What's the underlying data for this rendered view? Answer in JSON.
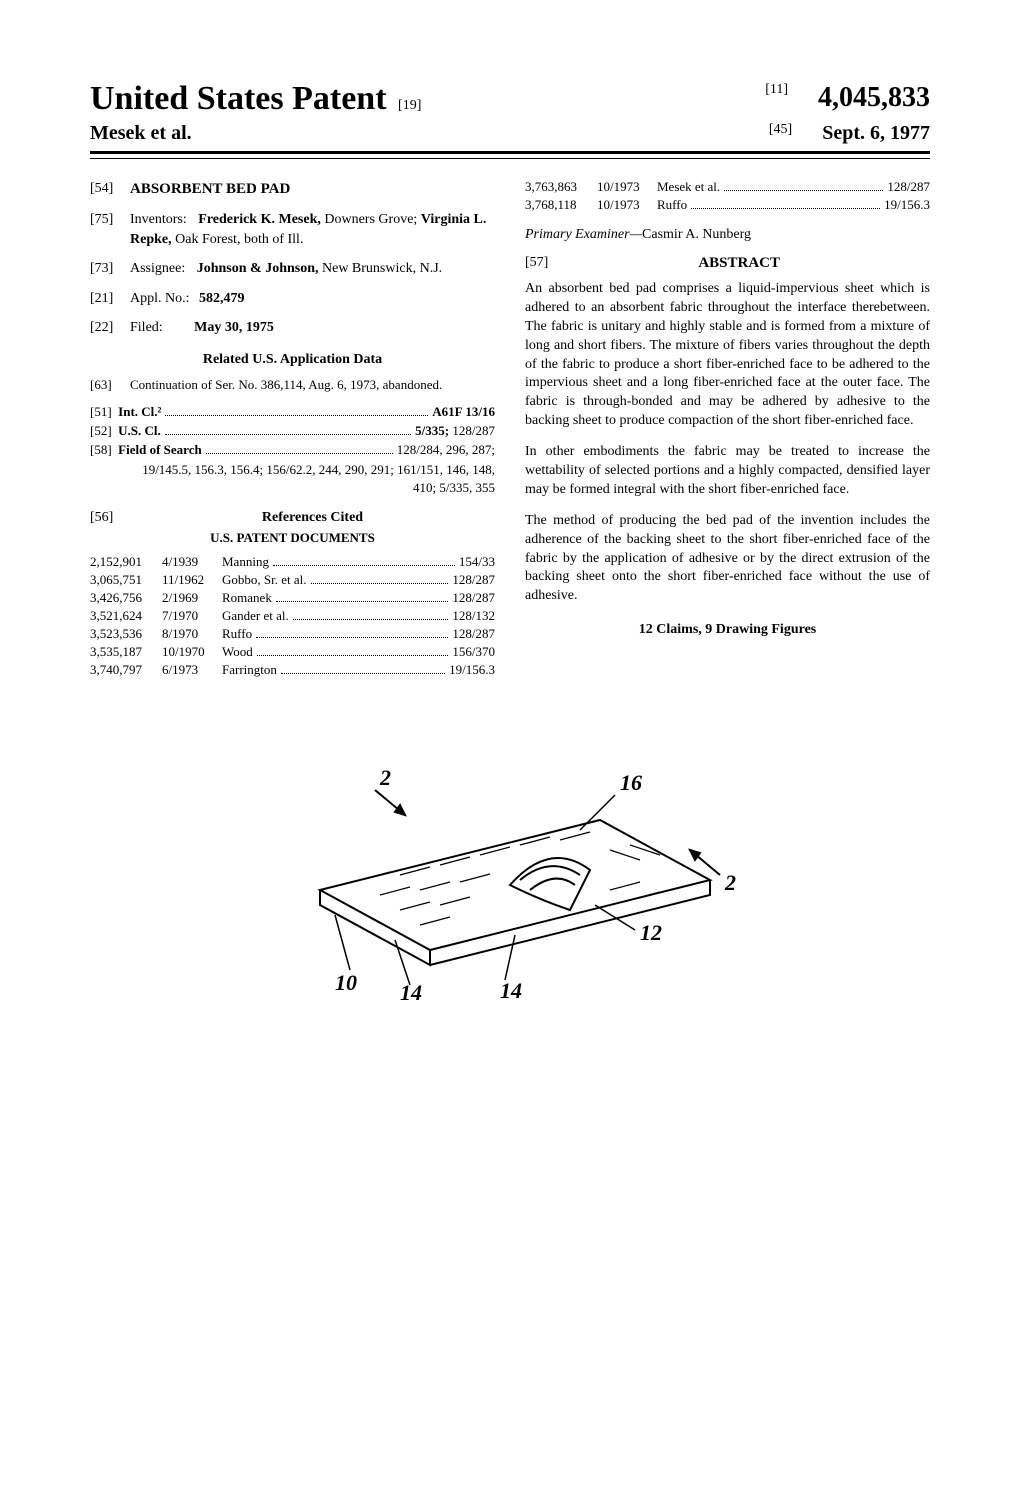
{
  "header": {
    "main_title": "United States Patent",
    "doc_code": "[19]",
    "authors": "Mesek et al.",
    "num_code": "[11]",
    "patent_number": "4,045,833",
    "date_code": "[45]",
    "patent_date": "Sept. 6, 1977"
  },
  "left_col": {
    "fields": [
      {
        "code": "[54]",
        "label": "",
        "value": "ABSORBENT BED PAD",
        "bold_value": true
      },
      {
        "code": "[75]",
        "label": "Inventors:",
        "value_html": "Frederick K. Mesek, Downers Grove; Virginia L. Repke, Oak Forest, both of Ill."
      },
      {
        "code": "[73]",
        "label": "Assignee:",
        "value_html": "Johnson & Johnson, New Brunswick, N.J."
      },
      {
        "code": "[21]",
        "label": "Appl. No.:",
        "value": "582,479",
        "bold_value": true
      },
      {
        "code": "[22]",
        "label": "Filed:",
        "value": "May 30, 1975",
        "bold_value": true
      }
    ],
    "related_heading": "Related U.S. Application Data",
    "related": {
      "code": "[63]",
      "text": "Continuation of Ser. No. 386,114, Aug. 6, 1973, abandoned."
    },
    "class_rows": [
      {
        "code": "[51]",
        "label": "Int. Cl.²",
        "right": "A61F 13/16",
        "bold_right": true
      },
      {
        "code": "[52]",
        "label": "U.S. Cl.",
        "right": "5/335; 128/287",
        "bold_right_partial": "5/335;"
      },
      {
        "code": "[58]",
        "label": "Field of Search",
        "right": "128/284, 296, 287;"
      }
    ],
    "fos_cont": "19/145.5, 156.3, 156.4; 156/62.2, 244, 290, 291; 161/151, 146, 148, 410; 5/335, 355",
    "refs_heading_code": "[56]",
    "refs_heading": "References Cited",
    "refs_subheading": "U.S. PATENT DOCUMENTS",
    "refs": [
      {
        "num": "2,152,901",
        "date": "4/1939",
        "name": "Manning",
        "cls": "154/33"
      },
      {
        "num": "3,065,751",
        "date": "11/1962",
        "name": "Gobbo, Sr. et al.",
        "cls": "128/287"
      },
      {
        "num": "3,426,756",
        "date": "2/1969",
        "name": "Romanek",
        "cls": "128/287"
      },
      {
        "num": "3,521,624",
        "date": "7/1970",
        "name": "Gander et al.",
        "cls": "128/132"
      },
      {
        "num": "3,523,536",
        "date": "8/1970",
        "name": "Ruffo",
        "cls": "128/287"
      },
      {
        "num": "3,535,187",
        "date": "10/1970",
        "name": "Wood",
        "cls": "156/370"
      },
      {
        "num": "3,740,797",
        "date": "6/1973",
        "name": "Farrington",
        "cls": "19/156.3"
      }
    ]
  },
  "right_col": {
    "top_refs": [
      {
        "num": "3,763,863",
        "date": "10/1973",
        "name": "Mesek et al.",
        "cls": "128/287"
      },
      {
        "num": "3,768,118",
        "date": "10/1973",
        "name": "Ruffo",
        "cls": "19/156.3"
      }
    ],
    "examiner_label": "Primary Examiner—",
    "examiner_name": "Casmir A. Nunberg",
    "abstract_code": "[57]",
    "abstract_heading": "ABSTRACT",
    "abstract_paras": [
      "An absorbent bed pad comprises a liquid-impervious sheet which is adhered to an absorbent fabric throughout the interface therebetween. The fabric is unitary and highly stable and is formed from a mixture of long and short fibers. The mixture of fibers varies throughout the depth of the fabric to produce a short fiber-enriched face to be adhered to the impervious sheet and a long fiber-enriched face at the outer face. The fabric is through-bonded and may be adhered by adhesive to the backing sheet to produce compaction of the short fiber-enriched face.",
      "In other embodiments the fabric may be treated to increase the wettability of selected portions and a highly compacted, densified layer may be formed integral with the short fiber-enriched face.",
      "The method of producing the bed pad of the invention includes the adherence of the backing sheet to the short fiber-enriched face of the fabric by the application of adhesive or by the direct extrusion of the backing sheet onto the short fiber-enriched face without the use of adhesive."
    ],
    "claims_line": "12 Claims, 9 Drawing Figures"
  },
  "figure": {
    "labels": [
      "2",
      "16",
      "2",
      "12",
      "10",
      "14",
      "14"
    ]
  }
}
